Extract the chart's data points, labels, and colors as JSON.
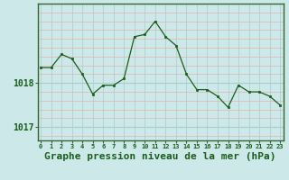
{
  "x": [
    0,
    1,
    2,
    3,
    4,
    5,
    6,
    7,
    8,
    9,
    10,
    11,
    12,
    13,
    14,
    15,
    16,
    17,
    18,
    19,
    20,
    21,
    22,
    23
  ],
  "y": [
    1018.35,
    1018.35,
    1018.65,
    1018.55,
    1018.2,
    1017.75,
    1017.95,
    1017.95,
    1018.1,
    1019.05,
    1019.1,
    1019.4,
    1019.05,
    1018.85,
    1018.2,
    1017.85,
    1017.85,
    1017.7,
    1017.45,
    1017.95,
    1017.8,
    1017.8,
    1017.7,
    1017.5
  ],
  "line_color": "#1a5e1a",
  "marker_color": "#1a5e1a",
  "bg_color": "#cce8e8",
  "grid_v_color": "#aacccc",
  "grid_h_pink": "#e8b0b0",
  "grid_h_main": "#aacccc",
  "xlabel": "Graphe pression niveau de la mer (hPa)",
  "ytick_labels": [
    "1017",
    "1018"
  ],
  "ytick_vals": [
    1017,
    1018
  ],
  "ylim": [
    1016.7,
    1019.8
  ],
  "xlim": [
    -0.3,
    23.3
  ],
  "tick_color": "#1a5e1a",
  "axis_color": "#336633",
  "label_fontsize": 7,
  "xlabel_fontsize": 8,
  "xtick_fontsize": 5
}
